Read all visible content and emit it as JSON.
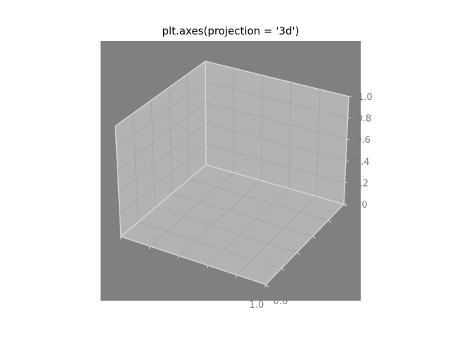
{
  "chart_data": {
    "type": "scatter",
    "title": "plt.axes(projection = '3d')",
    "projection": "3d",
    "series": [],
    "axes": {
      "x": {
        "lim": [
          0.0,
          1.0
        ],
        "visible_tick_labels": [
          "1.0"
        ]
      },
      "y": {
        "lim": [
          0.0,
          1.0
        ],
        "visible_tick_labels": [
          "0.0"
        ]
      },
      "z": {
        "lim": [
          0.0,
          1.0
        ],
        "tick_labels": [
          "0.0",
          "0.2",
          "0.4",
          "0.6",
          "0.8",
          "1.0"
        ]
      }
    },
    "grid": true
  },
  "colors": {
    "figure_background": "#ffffff",
    "axes_background": "#808080",
    "pane": "#b3b3b3",
    "pane_edge": "#d6d6d6",
    "grid": "#a4a4a4",
    "tick_label": "#7a7a7a"
  }
}
